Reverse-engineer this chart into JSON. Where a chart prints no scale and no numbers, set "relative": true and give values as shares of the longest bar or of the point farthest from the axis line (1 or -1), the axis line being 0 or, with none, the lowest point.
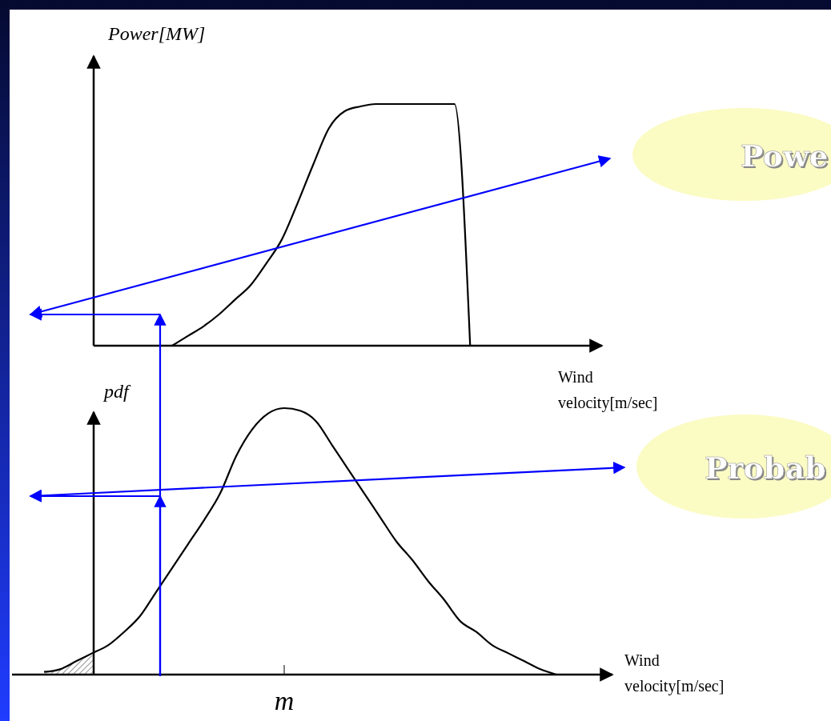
{
  "chart_data": [
    {
      "type": "line",
      "relative": true,
      "ylabel": "Power[MW]",
      "xlabel": "Wind velocity[m/sec]",
      "annotations": [
        "Powe"
      ],
      "color": "#000000",
      "categories": [
        null,
        null,
        null,
        null,
        null,
        null,
        null,
        null,
        null,
        null,
        null,
        null,
        null,
        null,
        null,
        null,
        null,
        null,
        null,
        null,
        null,
        null,
        null,
        null,
        null,
        null,
        null,
        null,
        null,
        null,
        null,
        null,
        null
      ],
      "values": [
        null,
        null,
        null,
        null,
        null,
        0,
        0.04,
        0.08,
        0.13,
        0.19,
        0.25,
        0.34,
        0.44,
        0.59,
        0.75,
        0.9,
        0.97,
        0.99,
        1,
        1,
        1,
        1,
        1,
        1,
        0,
        null,
        null,
        null,
        null,
        null,
        null,
        null,
        null
      ]
    },
    {
      "type": "line",
      "relative": true,
      "ylabel": "pdf",
      "xlabel": "Wind velocity[m/sec]",
      "annotations": [
        "Probab",
        "m"
      ],
      "color": "#000000",
      "categories": [
        null,
        null,
        null,
        null,
        null,
        null,
        null,
        null,
        null,
        null,
        null,
        null,
        null,
        null,
        null,
        null,
        null,
        null,
        null,
        null,
        null,
        null,
        null,
        null,
        null,
        null,
        null,
        null,
        null,
        null,
        null,
        null,
        null,
        null,
        null,
        null,
        null,
        null
      ],
      "values": [
        null,
        null,
        0.01,
        0.02,
        0.05,
        0.08,
        0.11,
        0.16,
        0.22,
        0.31,
        0.4,
        0.49,
        0.58,
        0.68,
        0.82,
        0.92,
        0.98,
        1,
        0.99,
        0.95,
        0.86,
        0.77,
        0.68,
        0.59,
        0.5,
        0.43,
        0.35,
        0.28,
        0.2,
        0.16,
        0.11,
        0.08,
        0.05,
        0.02,
        0,
        null,
        null,
        null
      ]
    }
  ]
}
